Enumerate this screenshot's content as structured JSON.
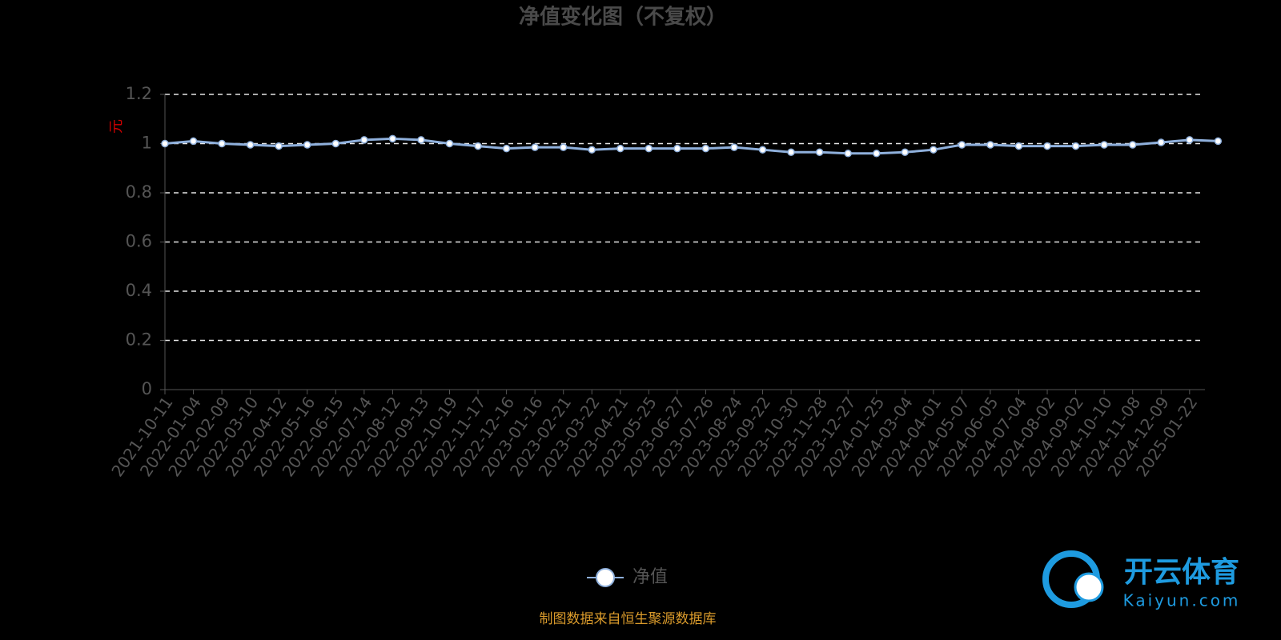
{
  "chart_data": {
    "type": "line",
    "title": "净值变化图（不复权）",
    "y_label": "元",
    "source": "制图数据来自恒生聚源数据库",
    "categories": [
      "2021-10-11",
      "2022-01-04",
      "2022-02-09",
      "2022-03-10",
      "2022-04-12",
      "2022-05-16",
      "2022-06-15",
      "2022-07-14",
      "2022-08-12",
      "2022-09-13",
      "2022-10-19",
      "2022-11-17",
      "2022-12-16",
      "2023-01-16",
      "2023-02-21",
      "2023-03-22",
      "2023-04-21",
      "2023-05-25",
      "2023-06-27",
      "2023-07-26",
      "2023-08-24",
      "2023-09-22",
      "2023-10-30",
      "2023-11-28",
      "2023-12-27",
      "2024-01-25",
      "2024-03-04",
      "2024-04-01",
      "2024-05-07",
      "2024-06-05",
      "2024-07-04",
      "2024-08-02",
      "2024-09-02",
      "2024-10-10",
      "2024-11-08",
      "2024-12-09",
      "2025-01-22",
      null
    ],
    "series": [
      {
        "name": "净值",
        "color": "#8fb0dc",
        "values": [
          1.0,
          1.01,
          1.0,
          0.995,
          0.99,
          0.995,
          1.0,
          1.015,
          1.02,
          1.015,
          1.0,
          0.99,
          0.98,
          0.985,
          0.985,
          0.975,
          0.98,
          0.98,
          0.98,
          0.98,
          0.985,
          0.975,
          0.965,
          0.965,
          0.96,
          0.96,
          0.965,
          0.975,
          0.995,
          0.995,
          0.99,
          0.99,
          0.99,
          0.995,
          0.995,
          1.005,
          1.015,
          1.01
        ]
      }
    ],
    "ylim": [
      0,
      1.2
    ],
    "yticks": [
      0,
      0.2,
      0.4,
      0.6,
      0.8,
      1,
      1.2
    ],
    "grid": true,
    "legend": "bottom"
  },
  "watermark": {
    "brand": "开云体育",
    "site": "Kaiyun.com"
  }
}
